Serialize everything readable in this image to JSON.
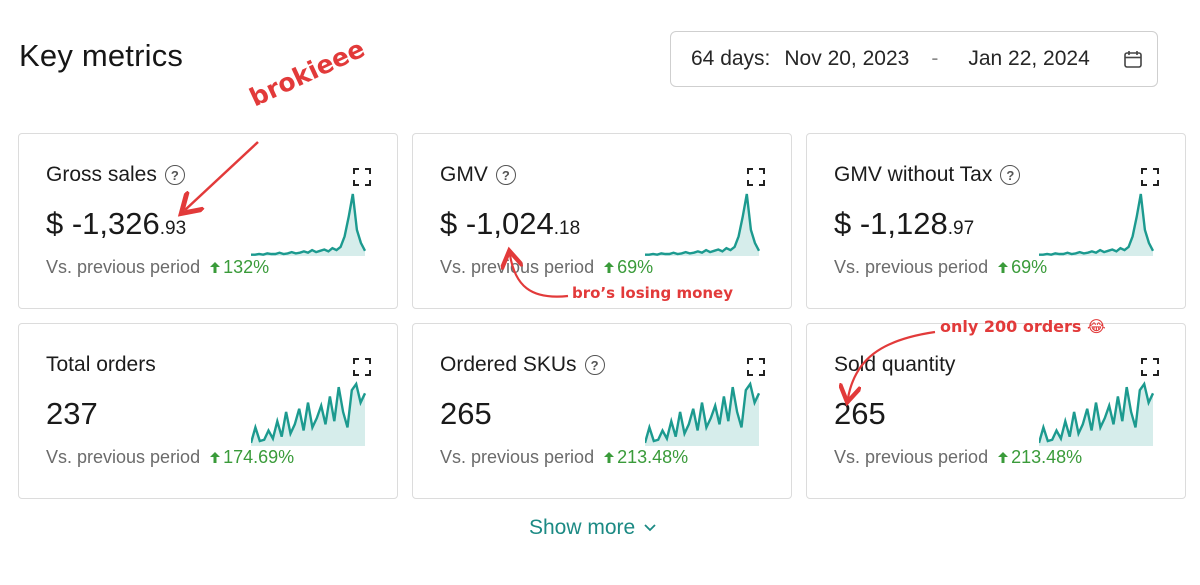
{
  "header": {
    "title": "Key metrics",
    "date_range": {
      "days": "64 days:",
      "start": "Nov 20, 2023",
      "separator": "-",
      "end": "Jan 22, 2024",
      "icon": "calendar-icon"
    }
  },
  "cards": [
    {
      "title": "Gross sales",
      "has_help": true,
      "value_main": "$ -1,326",
      "value_decimal": ".93",
      "comparison_label": "Vs. previous period",
      "change": "132%",
      "sparkline": [
        2,
        2,
        3,
        2,
        4,
        3,
        3,
        5,
        3,
        4,
        6,
        4,
        5,
        7,
        5,
        9,
        6,
        8,
        10,
        7,
        12,
        9,
        14,
        30,
        60,
        95,
        40,
        20,
        8
      ]
    },
    {
      "title": "GMV",
      "has_help": true,
      "value_main": "$ -1,024",
      "value_decimal": ".18",
      "comparison_label": "Vs. previous period",
      "change": "69%",
      "sparkline": [
        2,
        2,
        3,
        2,
        4,
        3,
        3,
        5,
        3,
        4,
        6,
        4,
        5,
        7,
        5,
        9,
        6,
        8,
        10,
        7,
        12,
        9,
        14,
        30,
        60,
        95,
        40,
        20,
        8
      ]
    },
    {
      "title": "GMV without Tax",
      "has_help": true,
      "value_main": "$ -1,128",
      "value_decimal": ".97",
      "comparison_label": "Vs. previous period",
      "change": "69%",
      "sparkline": [
        2,
        2,
        3,
        2,
        4,
        3,
        3,
        5,
        3,
        4,
        6,
        4,
        5,
        7,
        5,
        9,
        6,
        8,
        10,
        7,
        12,
        9,
        14,
        30,
        60,
        95,
        40,
        20,
        8
      ]
    },
    {
      "title": "Total orders",
      "has_help": false,
      "value_main": "237",
      "value_decimal": "",
      "comparison_label": "Vs. previous period",
      "change": "174.69%",
      "sparkline": [
        5,
        30,
        8,
        10,
        25,
        12,
        40,
        15,
        55,
        20,
        35,
        60,
        25,
        70,
        30,
        45,
        65,
        35,
        80,
        40,
        95,
        55,
        30,
        90,
        100,
        70,
        85
      ]
    },
    {
      "title": "Ordered SKUs",
      "has_help": true,
      "value_main": "265",
      "value_decimal": "",
      "comparison_label": "Vs. previous period",
      "change": "213.48%",
      "sparkline": [
        5,
        30,
        8,
        10,
        25,
        12,
        40,
        15,
        55,
        20,
        35,
        60,
        25,
        70,
        30,
        45,
        65,
        35,
        80,
        40,
        95,
        55,
        30,
        90,
        100,
        70,
        85
      ]
    },
    {
      "title": "Sold quantity",
      "has_help": false,
      "value_main": "265",
      "value_decimal": "",
      "comparison_label": "Vs. previous period",
      "change": "213.48%",
      "sparkline": [
        5,
        30,
        8,
        10,
        25,
        12,
        40,
        15,
        55,
        20,
        35,
        60,
        25,
        70,
        30,
        45,
        65,
        35,
        80,
        40,
        95,
        55,
        30,
        90,
        100,
        70,
        85
      ]
    }
  ],
  "footer": {
    "show_more": "Show more"
  },
  "annotations": {
    "brokie": "brokieee",
    "losing_money": "bro’s losing money",
    "only_orders": "only 200 orders 😂"
  },
  "colors": {
    "accent": "#1c9a8f",
    "positive": "#3a9b3a",
    "annotation": "#e23a3a"
  }
}
